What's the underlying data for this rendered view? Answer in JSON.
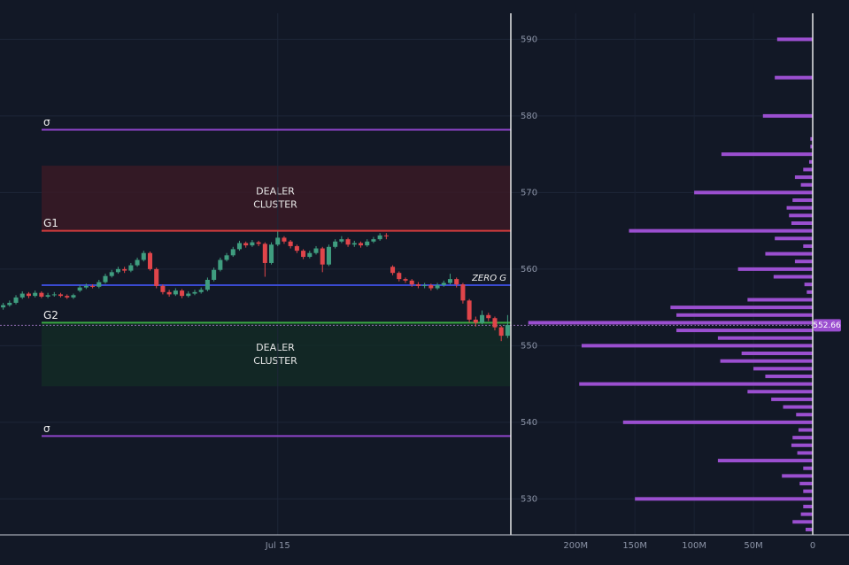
{
  "chart_data": [
    {
      "type": "candlestick",
      "categories": [
        null,
        null,
        null,
        null,
        null,
        null,
        null,
        null,
        null,
        null,
        null,
        null,
        null,
        null,
        null,
        null,
        null,
        null,
        null,
        null,
        null,
        null,
        null,
        null,
        null,
        null,
        null,
        null,
        null,
        null,
        null,
        null,
        null,
        null,
        null,
        null,
        null,
        null,
        null,
        null,
        null,
        null,
        null,
        "Jul 15",
        null,
        null,
        null,
        null,
        null,
        null,
        null,
        null,
        null,
        null,
        null,
        null,
        null,
        null,
        null,
        null,
        null,
        null,
        null,
        null,
        null,
        null,
        null,
        null,
        null,
        null,
        null,
        null,
        null,
        null,
        null,
        null,
        null,
        null,
        null,
        null
      ],
      "open": [
        555.0,
        555.3,
        555.6,
        556.3,
        556.8,
        556.5,
        556.9,
        556.4,
        556.6,
        556.7,
        556.5,
        556.3,
        557.2,
        557.6,
        557.8,
        557.7,
        558.3,
        559.1,
        559.6,
        560.0,
        559.8,
        560.5,
        561.2,
        562.1,
        560.0,
        557.8,
        557.0,
        556.7,
        557.2,
        556.5,
        556.8,
        557.0,
        557.3,
        558.6,
        559.9,
        561.2,
        561.8,
        562.6,
        563.4,
        563.1,
        563.5,
        563.3,
        560.8,
        563.2,
        564.1,
        563.6,
        563.0,
        562.4,
        561.6,
        562.1,
        562.7,
        560.6,
        562.9,
        563.6,
        563.9,
        563.2,
        563.4,
        563.1,
        563.6,
        563.9,
        564.4,
        560.3,
        559.5,
        558.7,
        558.5,
        558.0,
        557.8,
        557.9,
        557.5,
        557.9,
        558.2,
        558.7,
        558.0,
        555.9,
        553.4,
        553.0,
        554.0,
        553.6,
        552.4,
        551.3
      ],
      "high": [
        555.6,
        555.9,
        556.6,
        557.1,
        557.0,
        557.2,
        557.1,
        556.9,
        557.0,
        556.9,
        556.7,
        556.8,
        557.9,
        558.1,
        558.0,
        558.6,
        559.4,
        559.9,
        560.3,
        560.3,
        560.8,
        561.5,
        562.4,
        562.3,
        560.2,
        558.0,
        557.3,
        557.5,
        557.4,
        557.1,
        557.3,
        557.6,
        558.9,
        560.2,
        561.5,
        562.1,
        562.9,
        563.7,
        563.6,
        563.8,
        563.7,
        563.5,
        563.5,
        564.9,
        564.3,
        563.8,
        563.2,
        562.6,
        562.4,
        563.0,
        562.9,
        563.2,
        563.9,
        564.3,
        564.1,
        563.7,
        563.6,
        563.9,
        564.2,
        564.7,
        564.7,
        560.5,
        559.7,
        558.9,
        558.7,
        558.3,
        558.2,
        558.1,
        558.2,
        558.5,
        559.4,
        558.9,
        558.2,
        556.1,
        553.8,
        554.6,
        554.3,
        553.8,
        552.6,
        554.0
      ],
      "low": [
        554.7,
        555.1,
        555.4,
        556.1,
        556.2,
        556.3,
        556.2,
        556.2,
        556.4,
        556.3,
        556.1,
        556.1,
        557.0,
        557.4,
        557.5,
        557.5,
        558.1,
        558.9,
        559.4,
        559.5,
        559.6,
        560.3,
        561.0,
        559.8,
        557.5,
        556.7,
        556.4,
        556.5,
        556.2,
        556.3,
        556.6,
        556.8,
        557.1,
        558.4,
        559.7,
        561.0,
        561.6,
        562.4,
        562.8,
        562.9,
        563.0,
        559.0,
        560.6,
        563.0,
        563.3,
        562.7,
        562.1,
        561.3,
        561.4,
        561.9,
        559.6,
        560.4,
        562.7,
        563.4,
        562.9,
        562.9,
        562.8,
        562.9,
        563.4,
        563.7,
        563.9,
        559.2,
        558.4,
        558.2,
        557.7,
        557.5,
        557.5,
        557.2,
        557.3,
        557.7,
        558.0,
        557.6,
        555.5,
        553.0,
        552.5,
        552.8,
        553.2,
        552.0,
        550.6,
        551.0
      ],
      "close": [
        555.3,
        555.6,
        556.3,
        556.8,
        556.5,
        556.9,
        556.4,
        556.6,
        556.7,
        556.5,
        556.3,
        556.6,
        557.6,
        557.8,
        557.7,
        558.3,
        559.1,
        559.6,
        560.0,
        559.8,
        560.5,
        561.2,
        562.1,
        560.0,
        557.8,
        557.0,
        556.7,
        557.2,
        556.5,
        556.8,
        557.0,
        557.3,
        558.6,
        559.9,
        561.2,
        561.8,
        562.6,
        563.4,
        563.1,
        563.5,
        563.3,
        560.8,
        563.2,
        564.1,
        563.6,
        563.0,
        562.4,
        561.6,
        562.1,
        562.7,
        560.6,
        562.9,
        563.6,
        563.9,
        563.2,
        563.4,
        563.1,
        563.6,
        563.9,
        564.4,
        564.3,
        559.5,
        558.7,
        558.5,
        558.0,
        557.8,
        557.9,
        557.5,
        557.9,
        558.2,
        558.7,
        558.0,
        555.9,
        553.4,
        553.0,
        554.0,
        553.6,
        552.4,
        551.3,
        552.7
      ],
      "up_color": "#3f9d7f",
      "down_color": "#e0454a",
      "ylim": [
        525.3,
        593.4
      ],
      "yticks": [
        530,
        540,
        550,
        560,
        570,
        580,
        590
      ],
      "grid": true,
      "levels": [
        {
          "label": "σ",
          "value": 578.2,
          "color": "#8e44c9",
          "label_position": "left"
        },
        {
          "label": "G1",
          "value": 565.0,
          "color": "#d23c3c",
          "label_position": "left"
        },
        {
          "label": "ZERO G",
          "value": 557.9,
          "color": "#3a4ad0",
          "label_position": "right"
        },
        {
          "label": "G2",
          "value": 553.0,
          "color": "#3aa843",
          "label_position": "left"
        },
        {
          "label": "σ",
          "value": 538.2,
          "color": "#8e44c9",
          "label_position": "left"
        }
      ],
      "zones": [
        {
          "lines": [
            "DEALER",
            "CLUSTER"
          ],
          "from": 565.0,
          "to": 573.5,
          "color": "#3a1a26"
        },
        {
          "lines": [
            "DEALER",
            "CLUSTER"
          ],
          "from": 544.7,
          "to": 553.0,
          "color": "#132a26"
        }
      ],
      "current_price": 552.66
    },
    {
      "type": "hbar",
      "y": [
        590,
        585,
        580,
        577,
        576,
        575,
        574,
        573,
        572,
        571,
        570,
        569,
        568,
        567,
        566,
        565,
        564,
        563,
        562,
        561,
        560,
        559,
        558,
        557,
        556,
        555,
        554,
        553,
        552,
        551,
        550,
        549,
        548,
        547,
        546,
        545,
        544,
        543,
        542,
        541,
        540,
        539,
        538,
        537,
        536,
        535,
        534,
        533,
        532,
        531,
        530,
        529,
        528,
        527,
        526
      ],
      "values": [
        30,
        32,
        42,
        2,
        2,
        77,
        3,
        8,
        15,
        10,
        100,
        17,
        22,
        20,
        18,
        155,
        32,
        8,
        40,
        15,
        63,
        33,
        7,
        5,
        55,
        120,
        115,
        240,
        115,
        80,
        195,
        60,
        78,
        50,
        40,
        197,
        55,
        35,
        25,
        14,
        160,
        12,
        17,
        18,
        13,
        80,
        8,
        26,
        11,
        8,
        150,
        8,
        10,
        17,
        6
      ],
      "color": "#9b4fd0",
      "ylim": [
        525.3,
        593.4
      ],
      "xlim": [
        245,
        0
      ],
      "xticks": [
        {
          "value": 200,
          "label": "200M"
        },
        {
          "value": 150,
          "label": "150M"
        },
        {
          "value": 100,
          "label": "100M"
        },
        {
          "value": 50,
          "label": "50M"
        },
        0
      ]
    }
  ]
}
